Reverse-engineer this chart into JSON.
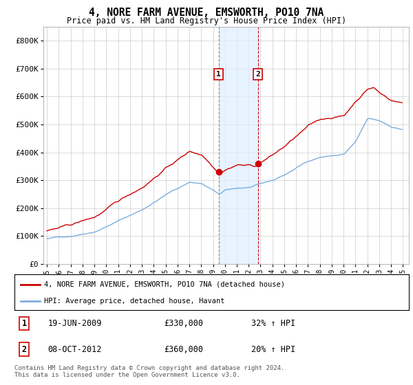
{
  "title": "4, NORE FARM AVENUE, EMSWORTH, PO10 7NA",
  "subtitle": "Price paid vs. HM Land Registry's House Price Index (HPI)",
  "ylim": [
    0,
    850000
  ],
  "yticks": [
    0,
    100000,
    200000,
    300000,
    400000,
    500000,
    600000,
    700000,
    800000
  ],
  "ytick_labels": [
    "£0",
    "£100K",
    "£200K",
    "£300K",
    "£400K",
    "£500K",
    "£600K",
    "£700K",
    "£800K"
  ],
  "sale1_x": 2009.47,
  "sale1_y": 330000,
  "sale1_label": "1",
  "sale2_x": 2012.77,
  "sale2_y": 360000,
  "sale2_label": "2",
  "highlight_xmin": 2009.47,
  "highlight_xmax": 2012.77,
  "red_line_color": "#cc0000",
  "blue_line_color": "#7aaddd",
  "legend_red_label": "4, NORE FARM AVENUE, EMSWORTH, PO10 7NA (detached house)",
  "legend_blue_label": "HPI: Average price, detached house, Havant",
  "note1_label": "1",
  "note1_date": "19-JUN-2009",
  "note1_price": "£330,000",
  "note1_change": "32% ↑ HPI",
  "note2_label": "2",
  "note2_date": "08-OCT-2012",
  "note2_price": "£360,000",
  "note2_change": "20% ↑ HPI",
  "footer": "Contains HM Land Registry data © Crown copyright and database right 2024.\nThis data is licensed under the Open Government Licence v3.0.",
  "xlim_min": 1994.7,
  "xlim_max": 2025.5
}
